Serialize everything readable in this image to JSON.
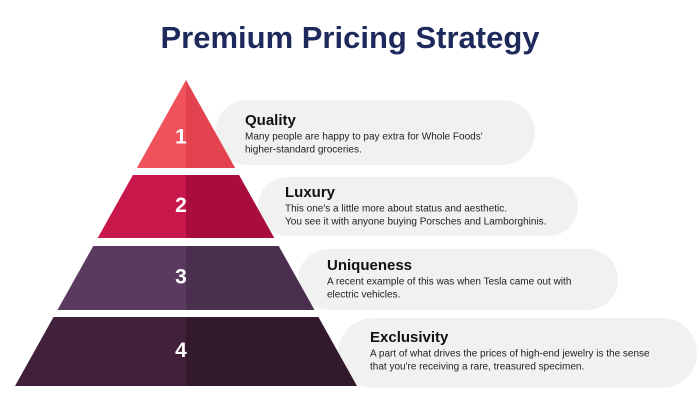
{
  "title": "Premium Pricing Strategy",
  "levels": [
    {
      "number": 1,
      "title": "Quality",
      "description": [
        "Many people are happy to pay extra for Whole Foods'",
        "higher-standard groceries."
      ]
    },
    {
      "number": 2,
      "title": "Luxury",
      "description": [
        "This one's a little more about status and aesthetic.",
        "You see it with anyone buying Porsches and Lamborghinis."
      ]
    },
    {
      "number": 3,
      "title": "Uniqueness",
      "description": [
        "A recent example of this was when Tesla came out with",
        "electric vehicles."
      ]
    },
    {
      "number": 4,
      "title": "Exclusivity",
      "description": [
        "A part of what drives the prices of high-end jewelry is the sense",
        "that you're receiving a rare, treasured specimen."
      ]
    }
  ]
}
